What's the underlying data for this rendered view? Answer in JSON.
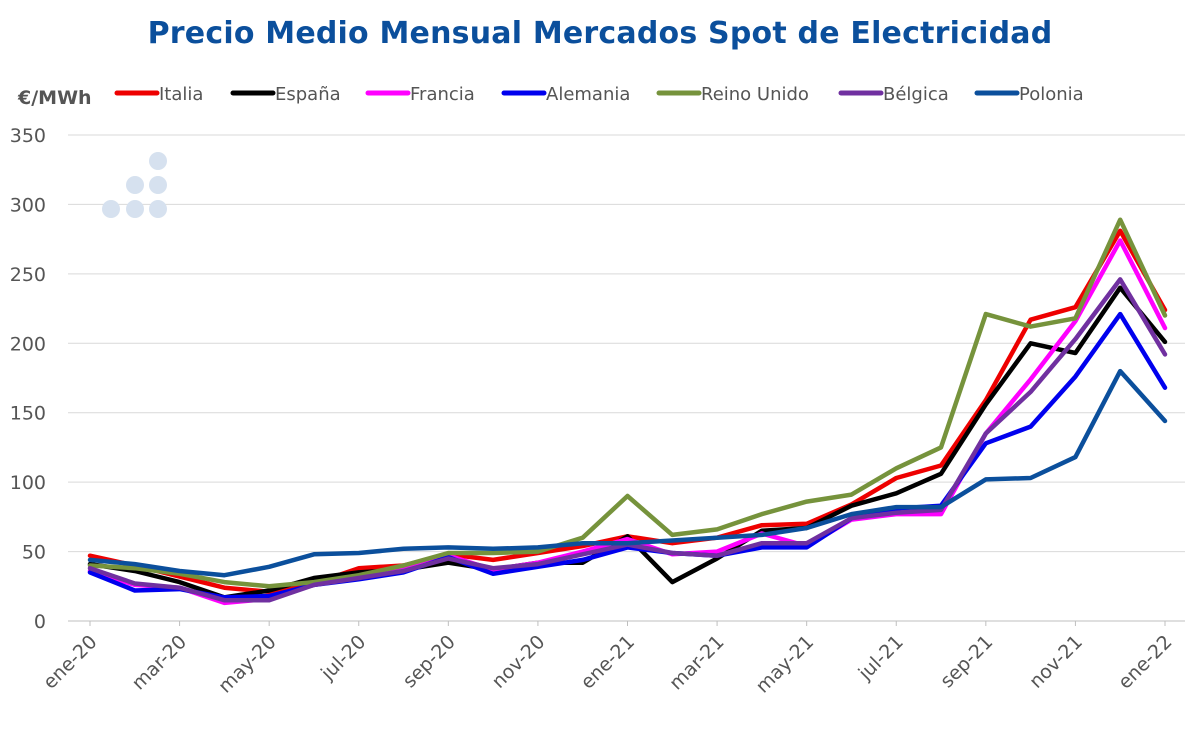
{
  "chart_data": {
    "type": "line",
    "title": "Precio Medio Mensual Mercados Spot de Electricidad",
    "ylabel": "€/MWh",
    "xlabel": "",
    "ylim": [
      0,
      350
    ],
    "yticks": [
      0,
      50,
      100,
      150,
      200,
      250,
      300,
      350
    ],
    "grid": true,
    "legend_position": "top",
    "categories": [
      "ene-20",
      "feb-20",
      "mar-20",
      "abr-20",
      "may-20",
      "jun-20",
      "jul-20",
      "ago-20",
      "sep-20",
      "oct-20",
      "nov-20",
      "dic-20",
      "ene-21",
      "feb-21",
      "mar-21",
      "abr-21",
      "may-21",
      "jun-21",
      "jul-21",
      "ago-21",
      "sep-21",
      "oct-21",
      "nov-21",
      "dic-21",
      "ene-22"
    ],
    "tick_labels": [
      "ene-20",
      "mar-20",
      "may-20",
      "jul-20",
      "sep-20",
      "nov-20",
      "ene-21",
      "mar-21",
      "may-21",
      "jul-21",
      "sep-21",
      "nov-21",
      "ene-22"
    ],
    "series": [
      {
        "name": "Italia",
        "color": "#ee0000",
        "values": [
          47,
          40,
          32,
          24,
          21,
          27,
          38,
          40,
          48,
          44,
          49,
          54,
          61,
          56,
          60,
          69,
          70,
          84,
          103,
          112,
          159,
          217,
          226,
          281,
          224
        ]
      },
      {
        "name": "España",
        "color": "#000000",
        "values": [
          41,
          36,
          28,
          17,
          22,
          31,
          35,
          37,
          42,
          37,
          42,
          42,
          61,
          28,
          45,
          65,
          67,
          83,
          92,
          106,
          156,
          200,
          193,
          240,
          201
        ]
      },
      {
        "name": "Francia",
        "color": "#ff00ff",
        "values": [
          36,
          26,
          24,
          13,
          16,
          26,
          31,
          37,
          47,
          37,
          42,
          50,
          59,
          48,
          50,
          63,
          54,
          73,
          77,
          77,
          135,
          174,
          216,
          274,
          211
        ]
      },
      {
        "name": "Alemania",
        "color": "#0000ee",
        "values": [
          35,
          22,
          23,
          17,
          18,
          26,
          30,
          35,
          46,
          34,
          39,
          44,
          53,
          49,
          47,
          53,
          53,
          74,
          81,
          83,
          128,
          140,
          176,
          221,
          168
        ]
      },
      {
        "name": "Reino Unido",
        "color": "#76933c",
        "values": [
          40,
          38,
          34,
          28,
          25,
          28,
          33,
          40,
          49,
          49,
          50,
          60,
          90,
          62,
          66,
          77,
          86,
          91,
          110,
          125,
          221,
          212,
          218,
          289,
          220
        ]
      },
      {
        "name": "Bélgica",
        "color": "#7030a0",
        "values": [
          38,
          27,
          24,
          15,
          15,
          26,
          31,
          36,
          45,
          38,
          41,
          48,
          55,
          49,
          47,
          56,
          56,
          74,
          78,
          80,
          135,
          165,
          203,
          246,
          192
        ]
      },
      {
        "name": "Polonia",
        "color": "#0b4f9c",
        "values": [
          44,
          41,
          36,
          33,
          39,
          48,
          49,
          52,
          53,
          52,
          53,
          56,
          56,
          58,
          60,
          62,
          67,
          77,
          82,
          82,
          102,
          103,
          118,
          180,
          144
        ]
      }
    ]
  },
  "watermark_icon": "dots-logo-icon"
}
